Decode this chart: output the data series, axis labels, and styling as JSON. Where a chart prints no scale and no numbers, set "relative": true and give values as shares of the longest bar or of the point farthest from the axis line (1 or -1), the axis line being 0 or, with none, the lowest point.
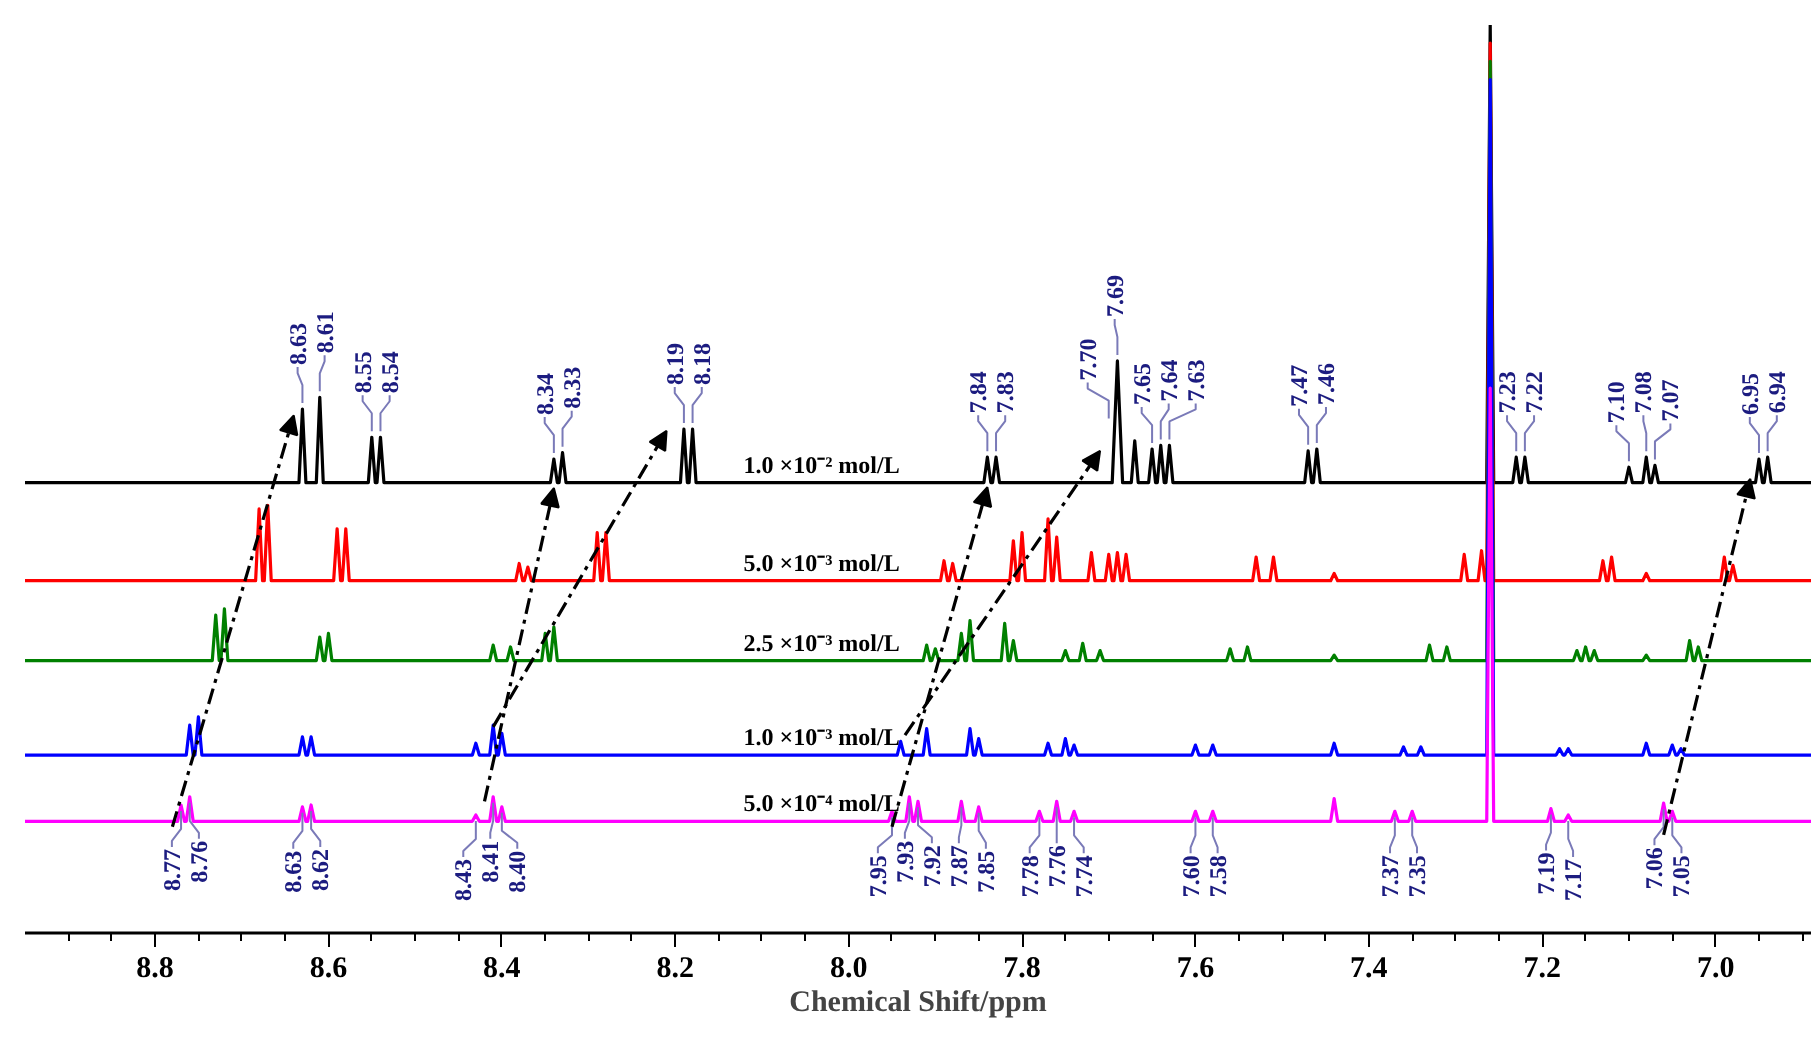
{
  "chart_data": {
    "type": "line",
    "relative": true,
    "xlabel": "Chemical Shift/ppm",
    "xlim": [
      8.95,
      6.89
    ],
    "xticks": [
      8.8,
      8.6,
      8.4,
      8.2,
      {
        "value": 8.0,
        "label": "8.0"
      },
      7.8,
      7.6,
      7.4,
      7.2,
      {
        "value": 7.0,
        "label": "7.0"
      }
    ],
    "grid": false,
    "line_style": "solid",
    "marker": "none",
    "series": [
      {
        "name": "1.0 ×10⁻² mol/L",
        "color": "#000000",
        "x": [
          8.95,
          8.634,
          8.63,
          8.626,
          8.614,
          8.61,
          8.606,
          8.554,
          8.55,
          8.546,
          8.544,
          8.54,
          8.536,
          8.344,
          8.34,
          8.336,
          8.334,
          8.33,
          8.326,
          8.194,
          8.19,
          8.186,
          8.184,
          8.18,
          8.176,
          7.844,
          7.84,
          7.836,
          7.834,
          7.83,
          7.826,
          7.696,
          7.69,
          7.684,
          7.674,
          7.67,
          7.666,
          7.654,
          7.65,
          7.646,
          7.644,
          7.64,
          7.636,
          7.634,
          7.63,
          7.626,
          7.474,
          7.47,
          7.466,
          7.464,
          7.46,
          7.456,
          7.264,
          7.26,
          7.256,
          7.234,
          7.23,
          7.226,
          7.224,
          7.22,
          7.216,
          7.104,
          7.1,
          7.096,
          7.084,
          7.08,
          7.076,
          7.074,
          7.07,
          7.066,
          6.954,
          6.95,
          6.946,
          6.944,
          6.94,
          6.936,
          6.89
        ],
        "values": [
          0.496,
          0.496,
          0.577,
          0.496,
          0.496,
          0.59,
          0.496,
          0.496,
          0.546,
          0.496,
          0.496,
          0.546,
          0.496,
          0.496,
          0.522,
          0.496,
          0.496,
          0.529,
          0.496,
          0.496,
          0.555,
          0.496,
          0.496,
          0.555,
          0.496,
          0.496,
          0.524,
          0.496,
          0.496,
          0.524,
          0.496,
          0.496,
          0.63,
          0.496,
          0.496,
          0.542,
          0.496,
          0.496,
          0.533,
          0.496,
          0.496,
          0.537,
          0.496,
          0.496,
          0.537,
          0.496,
          0.496,
          0.531,
          0.496,
          0.496,
          0.533,
          0.496,
          0.496,
          1.0,
          0.496,
          0.496,
          0.524,
          0.496,
          0.496,
          0.524,
          0.496,
          0.496,
          0.513,
          0.496,
          0.496,
          0.524,
          0.496,
          0.496,
          0.515,
          0.496,
          0.496,
          0.522,
          0.496,
          0.496,
          0.524,
          0.496,
          0.496
        ]
      },
      {
        "name": "5.0 ×10⁻³ mol/L",
        "color": "#ff0000",
        "x": [
          8.95,
          8.684,
          8.68,
          8.676,
          8.674,
          8.67,
          8.666,
          8.594,
          8.59,
          8.586,
          8.584,
          8.58,
          8.576,
          8.384,
          8.38,
          8.376,
          8.374,
          8.37,
          8.366,
          8.294,
          8.29,
          8.286,
          8.284,
          8.28,
          8.276,
          7.894,
          7.89,
          7.886,
          7.884,
          7.88,
          7.876,
          7.814,
          7.81,
          7.806,
          7.804,
          7.8,
          7.796,
          7.774,
          7.77,
          7.766,
          7.764,
          7.76,
          7.756,
          7.724,
          7.72,
          7.716,
          7.704,
          7.7,
          7.696,
          7.694,
          7.69,
          7.686,
          7.684,
          7.68,
          7.676,
          7.534,
          7.53,
          7.526,
          7.514,
          7.51,
          7.506,
          7.444,
          7.44,
          7.436,
          7.294,
          7.29,
          7.286,
          7.274,
          7.27,
          7.266,
          7.264,
          7.26,
          7.256,
          7.134,
          7.13,
          7.126,
          7.124,
          7.12,
          7.116,
          7.084,
          7.08,
          7.076,
          6.994,
          6.99,
          6.986,
          6.984,
          6.98,
          6.976,
          6.89
        ],
        "values": [
          0.388,
          0.388,
          0.467,
          0.388,
          0.388,
          0.471,
          0.388,
          0.388,
          0.445,
          0.388,
          0.388,
          0.445,
          0.388,
          0.388,
          0.407,
          0.388,
          0.388,
          0.403,
          0.388,
          0.388,
          0.441,
          0.388,
          0.388,
          0.441,
          0.388,
          0.388,
          0.41,
          0.388,
          0.388,
          0.407,
          0.388,
          0.388,
          0.432,
          0.388,
          0.388,
          0.441,
          0.388,
          0.388,
          0.456,
          0.388,
          0.388,
          0.436,
          0.388,
          0.388,
          0.419,
          0.388,
          0.388,
          0.417,
          0.388,
          0.388,
          0.419,
          0.388,
          0.388,
          0.417,
          0.388,
          0.388,
          0.414,
          0.388,
          0.388,
          0.414,
          0.388,
          0.388,
          0.396,
          0.388,
          0.388,
          0.417,
          0.388,
          0.388,
          0.421,
          0.388,
          0.388,
          0.98,
          0.388,
          0.388,
          0.41,
          0.388,
          0.388,
          0.414,
          0.388,
          0.388,
          0.396,
          0.388,
          0.388,
          0.414,
          0.388,
          0.388,
          0.405,
          0.388,
          0.388
        ]
      },
      {
        "name": "2.5 ×10⁻³ mol/L",
        "color": "#008000",
        "x": [
          8.95,
          8.734,
          8.73,
          8.726,
          8.724,
          8.72,
          8.716,
          8.614,
          8.61,
          8.606,
          8.604,
          8.6,
          8.596,
          8.414,
          8.41,
          8.406,
          8.394,
          8.39,
          8.386,
          8.354,
          8.35,
          8.346,
          8.344,
          8.34,
          8.336,
          7.914,
          7.91,
          7.906,
          7.904,
          7.9,
          7.896,
          7.874,
          7.87,
          7.866,
          7.864,
          7.86,
          7.856,
          7.824,
          7.82,
          7.816,
          7.814,
          7.81,
          7.806,
          7.754,
          7.75,
          7.746,
          7.734,
          7.73,
          7.726,
          7.714,
          7.71,
          7.706,
          7.564,
          7.56,
          7.556,
          7.544,
          7.54,
          7.536,
          7.444,
          7.44,
          7.436,
          7.334,
          7.33,
          7.326,
          7.314,
          7.31,
          7.306,
          7.264,
          7.26,
          7.256,
          7.164,
          7.16,
          7.156,
          7.154,
          7.15,
          7.146,
          7.144,
          7.14,
          7.136,
          7.084,
          7.08,
          7.076,
          7.034,
          7.03,
          7.026,
          7.024,
          7.02,
          7.016,
          6.89
        ],
        "values": [
          0.3,
          0.3,
          0.35,
          0.3,
          0.3,
          0.357,
          0.3,
          0.3,
          0.326,
          0.3,
          0.3,
          0.33,
          0.3,
          0.3,
          0.317,
          0.3,
          0.3,
          0.315,
          0.3,
          0.3,
          0.33,
          0.3,
          0.3,
          0.337,
          0.3,
          0.3,
          0.317,
          0.3,
          0.3,
          0.313,
          0.3,
          0.3,
          0.33,
          0.3,
          0.3,
          0.344,
          0.3,
          0.3,
          0.341,
          0.3,
          0.3,
          0.322,
          0.3,
          0.3,
          0.311,
          0.3,
          0.3,
          0.319,
          0.3,
          0.3,
          0.311,
          0.3,
          0.3,
          0.313,
          0.3,
          0.3,
          0.315,
          0.3,
          0.3,
          0.306,
          0.3,
          0.3,
          0.317,
          0.3,
          0.3,
          0.315,
          0.3,
          0.3,
          0.96,
          0.3,
          0.3,
          0.311,
          0.3,
          0.3,
          0.315,
          0.3,
          0.3,
          0.311,
          0.3,
          0.3,
          0.306,
          0.3,
          0.3,
          0.322,
          0.3,
          0.3,
          0.315,
          0.3,
          0.3
        ]
      },
      {
        "name": "1.0 ×10⁻³ mol/L",
        "color": "#0000ff",
        "x": [
          8.95,
          8.764,
          8.76,
          8.756,
          8.754,
          8.75,
          8.746,
          8.634,
          8.63,
          8.626,
          8.624,
          8.62,
          8.616,
          8.434,
          8.43,
          8.426,
          8.414,
          8.41,
          8.406,
          8.404,
          8.4,
          8.396,
          7.944,
          7.94,
          7.936,
          7.914,
          7.91,
          7.906,
          7.864,
          7.86,
          7.856,
          7.854,
          7.85,
          7.846,
          7.774,
          7.77,
          7.766,
          7.754,
          7.75,
          7.746,
          7.744,
          7.74,
          7.736,
          7.604,
          7.6,
          7.596,
          7.584,
          7.58,
          7.576,
          7.444,
          7.44,
          7.436,
          7.364,
          7.36,
          7.356,
          7.344,
          7.34,
          7.336,
          7.264,
          7.26,
          7.256,
          7.184,
          7.18,
          7.176,
          7.174,
          7.17,
          7.166,
          7.084,
          7.08,
          7.076,
          7.054,
          7.05,
          7.046,
          7.044,
          7.04,
          7.036,
          6.89
        ],
        "values": [
          0.196,
          0.196,
          0.229,
          0.196,
          0.196,
          0.238,
          0.196,
          0.196,
          0.216,
          0.196,
          0.196,
          0.216,
          0.196,
          0.196,
          0.209,
          0.196,
          0.196,
          0.229,
          0.196,
          0.196,
          0.22,
          0.196,
          0.196,
          0.211,
          0.196,
          0.196,
          0.225,
          0.196,
          0.196,
          0.225,
          0.196,
          0.196,
          0.214,
          0.196,
          0.196,
          0.209,
          0.196,
          0.196,
          0.214,
          0.196,
          0.196,
          0.207,
          0.196,
          0.196,
          0.207,
          0.196,
          0.196,
          0.207,
          0.196,
          0.196,
          0.209,
          0.196,
          0.196,
          0.205,
          0.196,
          0.196,
          0.205,
          0.196,
          0.196,
          0.94,
          0.196,
          0.196,
          0.203,
          0.196,
          0.196,
          0.203,
          0.196,
          0.196,
          0.209,
          0.196,
          0.196,
          0.207,
          0.196,
          0.196,
          0.203,
          0.196,
          0.196
        ]
      },
      {
        "name": "5.0 ×10⁻⁴ mol/L",
        "color": "#ff00ff",
        "x": [
          8.95,
          8.774,
          8.77,
          8.766,
          8.764,
          8.76,
          8.756,
          8.634,
          8.63,
          8.626,
          8.624,
          8.62,
          8.616,
          8.434,
          8.43,
          8.426,
          8.414,
          8.41,
          8.406,
          8.404,
          8.4,
          8.396,
          7.954,
          7.95,
          7.946,
          7.934,
          7.93,
          7.926,
          7.924,
          7.92,
          7.916,
          7.874,
          7.87,
          7.866,
          7.854,
          7.85,
          7.846,
          7.784,
          7.78,
          7.776,
          7.764,
          7.76,
          7.756,
          7.744,
          7.74,
          7.736,
          7.604,
          7.6,
          7.596,
          7.584,
          7.58,
          7.576,
          7.444,
          7.44,
          7.436,
          7.374,
          7.37,
          7.366,
          7.354,
          7.35,
          7.346,
          7.264,
          7.26,
          7.256,
          7.194,
          7.19,
          7.186,
          7.174,
          7.17,
          7.166,
          7.064,
          7.06,
          7.056,
          7.054,
          7.05,
          7.046,
          6.89
        ],
        "values": [
          0.123,
          0.123,
          0.141,
          0.123,
          0.123,
          0.15,
          0.123,
          0.123,
          0.139,
          0.123,
          0.123,
          0.141,
          0.123,
          0.123,
          0.13,
          0.123,
          0.123,
          0.15,
          0.123,
          0.123,
          0.139,
          0.123,
          0.123,
          0.134,
          0.123,
          0.123,
          0.15,
          0.123,
          0.123,
          0.145,
          0.123,
          0.123,
          0.145,
          0.123,
          0.123,
          0.139,
          0.123,
          0.123,
          0.134,
          0.123,
          0.123,
          0.145,
          0.123,
          0.123,
          0.134,
          0.123,
          0.123,
          0.134,
          0.123,
          0.123,
          0.134,
          0.123,
          0.123,
          0.148,
          0.123,
          0.123,
          0.134,
          0.123,
          0.123,
          0.134,
          0.123,
          0.123,
          0.6,
          0.123,
          0.123,
          0.137,
          0.123,
          0.123,
          0.13,
          0.123,
          0.123,
          0.143,
          0.123,
          0.123,
          0.134,
          0.123,
          0.123
        ]
      }
    ],
    "annotations": [
      {
        "text": "8.63",
        "x": 8.63,
        "y": 0.577
      },
      {
        "text": "8.61",
        "x": 8.61,
        "y": 0.59
      },
      {
        "text": "8.55",
        "x": 8.55,
        "y": 0.546
      },
      {
        "text": "8.54",
        "x": 8.54,
        "y": 0.546
      },
      {
        "text": "8.34",
        "x": 8.34,
        "y": 0.522
      },
      {
        "text": "8.33",
        "x": 8.33,
        "y": 0.529
      },
      {
        "text": "8.19",
        "x": 8.19,
        "y": 0.555
      },
      {
        "text": "8.18",
        "x": 8.18,
        "y": 0.555
      },
      {
        "text": "7.84",
        "x": 7.84,
        "y": 0.524
      },
      {
        "text": "7.83",
        "x": 7.83,
        "y": 0.524
      },
      {
        "text": "7.70",
        "x": 7.7,
        "y": 0.56
      },
      {
        "text": "7.69",
        "x": 7.69,
        "y": 0.63
      },
      {
        "text": "7.65",
        "x": 7.65,
        "y": 0.533
      },
      {
        "text": "7.64",
        "x": 7.64,
        "y": 0.537
      },
      {
        "text": "7.63",
        "x": 7.63,
        "y": 0.537
      },
      {
        "text": "7.47",
        "x": 7.47,
        "y": 0.531
      },
      {
        "text": "7.46",
        "x": 7.46,
        "y": 0.533
      },
      {
        "text": "7.23",
        "x": 7.23,
        "y": 0.524
      },
      {
        "text": "7.22",
        "x": 7.22,
        "y": 0.524
      },
      {
        "text": "7.10",
        "x": 7.1,
        "y": 0.513
      },
      {
        "text": "7.08",
        "x": 7.08,
        "y": 0.524
      },
      {
        "text": "7.07",
        "x": 7.07,
        "y": 0.515
      },
      {
        "text": "6.95",
        "x": 6.95,
        "y": 0.522
      },
      {
        "text": "6.94",
        "x": 6.94,
        "y": 0.524
      },
      {
        "text": "8.77",
        "x": 8.77,
        "y": 0.141
      },
      {
        "text": "8.76",
        "x": 8.76,
        "y": 0.15
      },
      {
        "text": "8.63",
        "x": 8.63,
        "y": 0.139
      },
      {
        "text": "8.62",
        "x": 8.62,
        "y": 0.141
      },
      {
        "text": "8.43",
        "x": 8.43,
        "y": 0.13
      },
      {
        "text": "8.41",
        "x": 8.41,
        "y": 0.15
      },
      {
        "text": "8.40",
        "x": 8.4,
        "y": 0.139
      },
      {
        "text": "7.95",
        "x": 7.95,
        "y": 0.134
      },
      {
        "text": "7.93",
        "x": 7.93,
        "y": 0.15
      },
      {
        "text": "7.92",
        "x": 7.92,
        "y": 0.145
      },
      {
        "text": "7.87",
        "x": 7.87,
        "y": 0.145
      },
      {
        "text": "7.85",
        "x": 7.85,
        "y": 0.139
      },
      {
        "text": "7.78",
        "x": 7.78,
        "y": 0.134
      },
      {
        "text": "7.76",
        "x": 7.76,
        "y": 0.145
      },
      {
        "text": "7.74",
        "x": 7.74,
        "y": 0.134
      },
      {
        "text": "7.60",
        "x": 7.6,
        "y": 0.134
      },
      {
        "text": "7.58",
        "x": 7.58,
        "y": 0.134
      },
      {
        "text": "7.37",
        "x": 7.37,
        "y": 0.134
      },
      {
        "text": "7.35",
        "x": 7.35,
        "y": 0.134
      },
      {
        "text": "7.19",
        "x": 7.19,
        "y": 0.137
      },
      {
        "text": "7.17",
        "x": 7.17,
        "y": 0.13
      },
      {
        "text": "7.06",
        "x": 7.06,
        "y": 0.143
      },
      {
        "text": "7.05",
        "x": 7.05,
        "y": 0.134
      }
    ]
  }
}
